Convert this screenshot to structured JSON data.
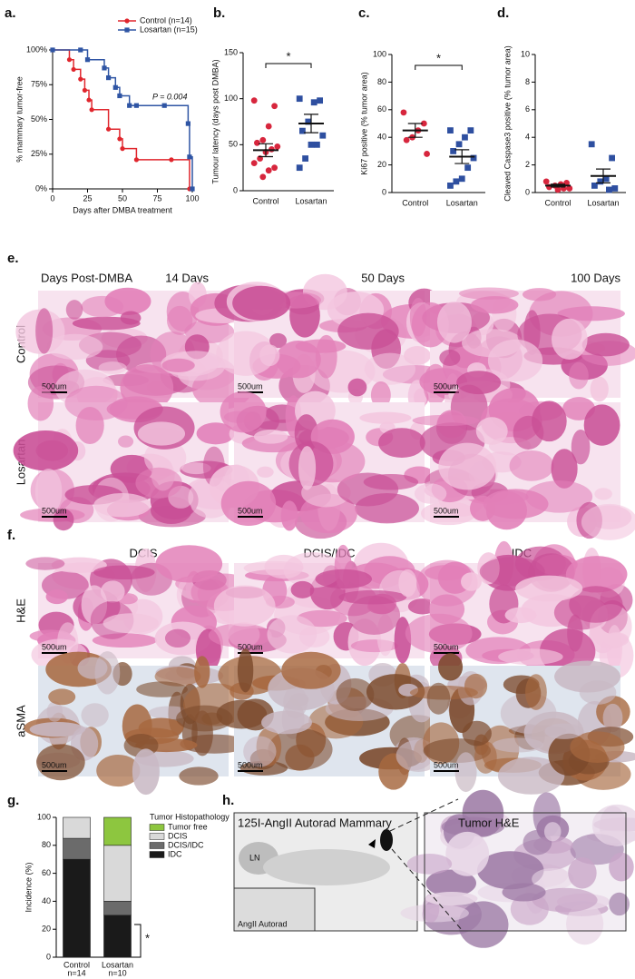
{
  "chart_data": [
    {
      "type": "step",
      "panel": "a.",
      "xlabel": "Days after DMBA treatment",
      "ylabel": "% mammary tumor-free",
      "xlim": [
        0,
        100
      ],
      "xticks": [
        0,
        25,
        50,
        75,
        100
      ],
      "ylim": [
        0,
        100
      ],
      "yticks": [
        {
          "value": 0,
          "label": "0%"
        },
        {
          "value": 25,
          "label": "25%"
        },
        {
          "value": 50,
          "label": "50%"
        },
        {
          "value": 75,
          "label": "75%"
        },
        {
          "value": 100,
          "label": "100%"
        }
      ],
      "annotation": "P = 0.004",
      "series": [
        {
          "name": "Control (n=14)",
          "color": "#e0262d",
          "marker": "circle",
          "x": [
            0,
            12,
            15,
            20,
            23,
            26,
            28,
            40,
            48,
            50,
            60,
            85,
            98
          ],
          "values": [
            100,
            93,
            86,
            79,
            71,
            64,
            57,
            43,
            36,
            29,
            21,
            21,
            0
          ]
        },
        {
          "name": "Losartan (n=15)",
          "color": "#2f55a4",
          "marker": "square",
          "x": [
            0,
            20,
            25,
            37,
            40,
            45,
            48,
            55,
            60,
            80,
            97,
            98,
            100
          ],
          "values": [
            100,
            100,
            93,
            87,
            80,
            73,
            67,
            60,
            60,
            60,
            47,
            23,
            0
          ]
        }
      ]
    },
    {
      "type": "dot",
      "panel": "b.",
      "ylabel": "Tumour latency (days post DMBA)",
      "significance": "*",
      "categories": [
        "Control",
        "Losartan"
      ],
      "colors": [
        "#d7263d",
        "#2e4fa0"
      ],
      "markers": [
        "circle",
        "square"
      ],
      "points": [
        [
          98,
          92,
          70,
          55,
          52,
          48,
          45,
          42,
          35,
          30,
          25,
          22,
          15
        ],
        [
          100,
          98,
          96,
          75,
          65,
          60,
          50,
          50,
          35,
          25
        ]
      ],
      "means": [
        44,
        73
      ],
      "sems": [
        7,
        10
      ],
      "ylim": [
        0,
        150
      ],
      "yticks": [
        0,
        50,
        100,
        150
      ]
    },
    {
      "type": "dot",
      "panel": "c.",
      "ylabel": "Ki67 positive (% tumor area)",
      "significance": "*",
      "categories": [
        "Control",
        "Losartan"
      ],
      "colors": [
        "#d7263d",
        "#2e4fa0"
      ],
      "markers": [
        "circle",
        "square"
      ],
      "points": [
        [
          58,
          50,
          45,
          40,
          38,
          28
        ],
        [
          45,
          45,
          40,
          35,
          30,
          25,
          18,
          10,
          8,
          5
        ]
      ],
      "means": [
        45,
        26
      ],
      "sems": [
        5,
        5
      ],
      "ylim": [
        0,
        100
      ],
      "yticks": [
        0,
        20,
        40,
        60,
        80,
        100
      ]
    },
    {
      "type": "dot",
      "panel": "d.",
      "ylabel": "Cleaved Caspase3 positive (% tumor area)",
      "categories": [
        "Control",
        "Losartan"
      ],
      "colors": [
        "#d7263d",
        "#2e4fa0"
      ],
      "markers": [
        "circle",
        "square"
      ],
      "points": [
        [
          0.8,
          0.7,
          0.6,
          0.5,
          0.4,
          0.3,
          0.3,
          0.2
        ],
        [
          3.5,
          2.5,
          1.0,
          0.8,
          0.5,
          0.3,
          0.2
        ]
      ],
      "means": [
        0.5,
        1.2
      ],
      "sems": [
        0.1,
        0.5
      ],
      "ylim": [
        0,
        10
      ],
      "yticks": [
        0,
        2,
        4,
        6,
        8,
        10
      ]
    },
    {
      "type": "stacked_bar",
      "panel": "g.",
      "ylabel": "Incidence (%)",
      "legend_title": "Tumor Histopathology",
      "significance": "*",
      "categories": [
        "Control",
        "Losartan"
      ],
      "category_notes": [
        "n=14",
        "n=10"
      ],
      "ylim": [
        0,
        100
      ],
      "yticks": [
        0,
        20,
        40,
        60,
        80,
        100
      ],
      "series": [
        {
          "name": "IDC",
          "color": "#1a1a1a",
          "values": [
            70,
            30
          ]
        },
        {
          "name": "DCIS/IDC",
          "color": "#6b6b6b",
          "values": [
            15,
            10
          ]
        },
        {
          "name": "DCIS",
          "color": "#d9d9d9",
          "values": [
            15,
            40
          ]
        },
        {
          "name": "Tumor free",
          "color": "#8dc63f",
          "values": [
            0,
            20
          ]
        }
      ]
    }
  ],
  "panel_e": {
    "label": "e.",
    "header": "Days Post-DMBA",
    "columns": [
      "14 Days",
      "50 Days",
      "100 Days"
    ],
    "rows": [
      "Control",
      "Losartan"
    ],
    "scale_bar": "500um"
  },
  "panel_f": {
    "label": "f.",
    "columns": [
      "DCIS",
      "DCIS/IDC",
      "IDC"
    ],
    "rows": [
      "H&E",
      "aSMA"
    ],
    "scale_bar": "500um"
  },
  "panel_h": {
    "label": "h.",
    "left_title": "125I-AngII Autorad Mammary",
    "right_title": "Tumor H&E",
    "node_label": "LN",
    "inset_label": "AngII Autorad"
  }
}
